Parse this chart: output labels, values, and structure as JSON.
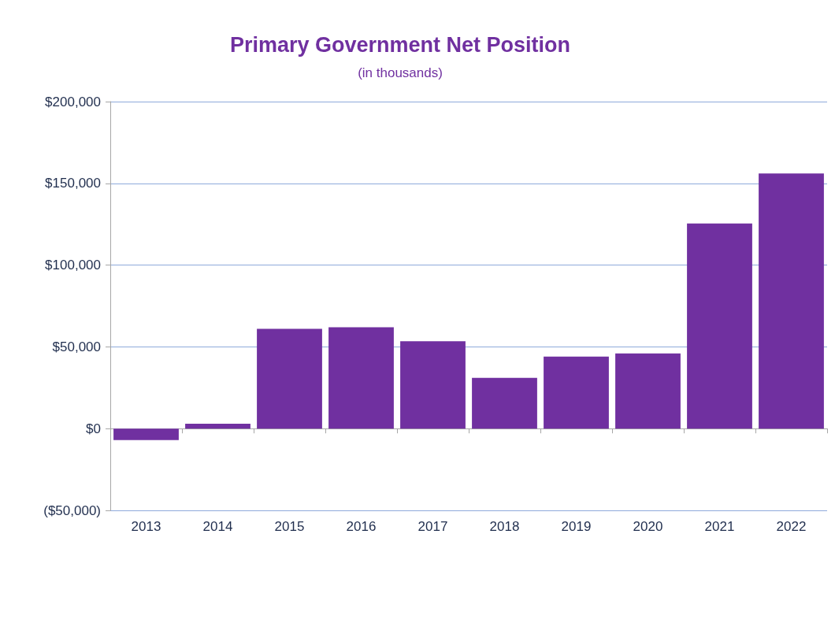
{
  "chart_data": {
    "type": "bar",
    "title": "Primary Government Net Position",
    "subtitle": "(in thousands)",
    "categories": [
      "2013",
      "2014",
      "2015",
      "2016",
      "2017",
      "2018",
      "2019",
      "2020",
      "2021",
      "2022"
    ],
    "values": [
      -7000,
      3000,
      61000,
      62000,
      53500,
      31000,
      44000,
      46000,
      125500,
      156000
    ],
    "color": "#7030a0",
    "ylim": [
      -50000,
      200000
    ],
    "yticks": [
      {
        "value": -50000,
        "label": "($50,000)"
      },
      {
        "value": 0,
        "label": "$0"
      },
      {
        "value": 50000,
        "label": "$50,000"
      },
      {
        "value": 100000,
        "label": "$100,000"
      },
      {
        "value": 150000,
        "label": "$150,000"
      },
      {
        "value": 200000,
        "label": "$200,000"
      }
    ],
    "grid": "y"
  }
}
